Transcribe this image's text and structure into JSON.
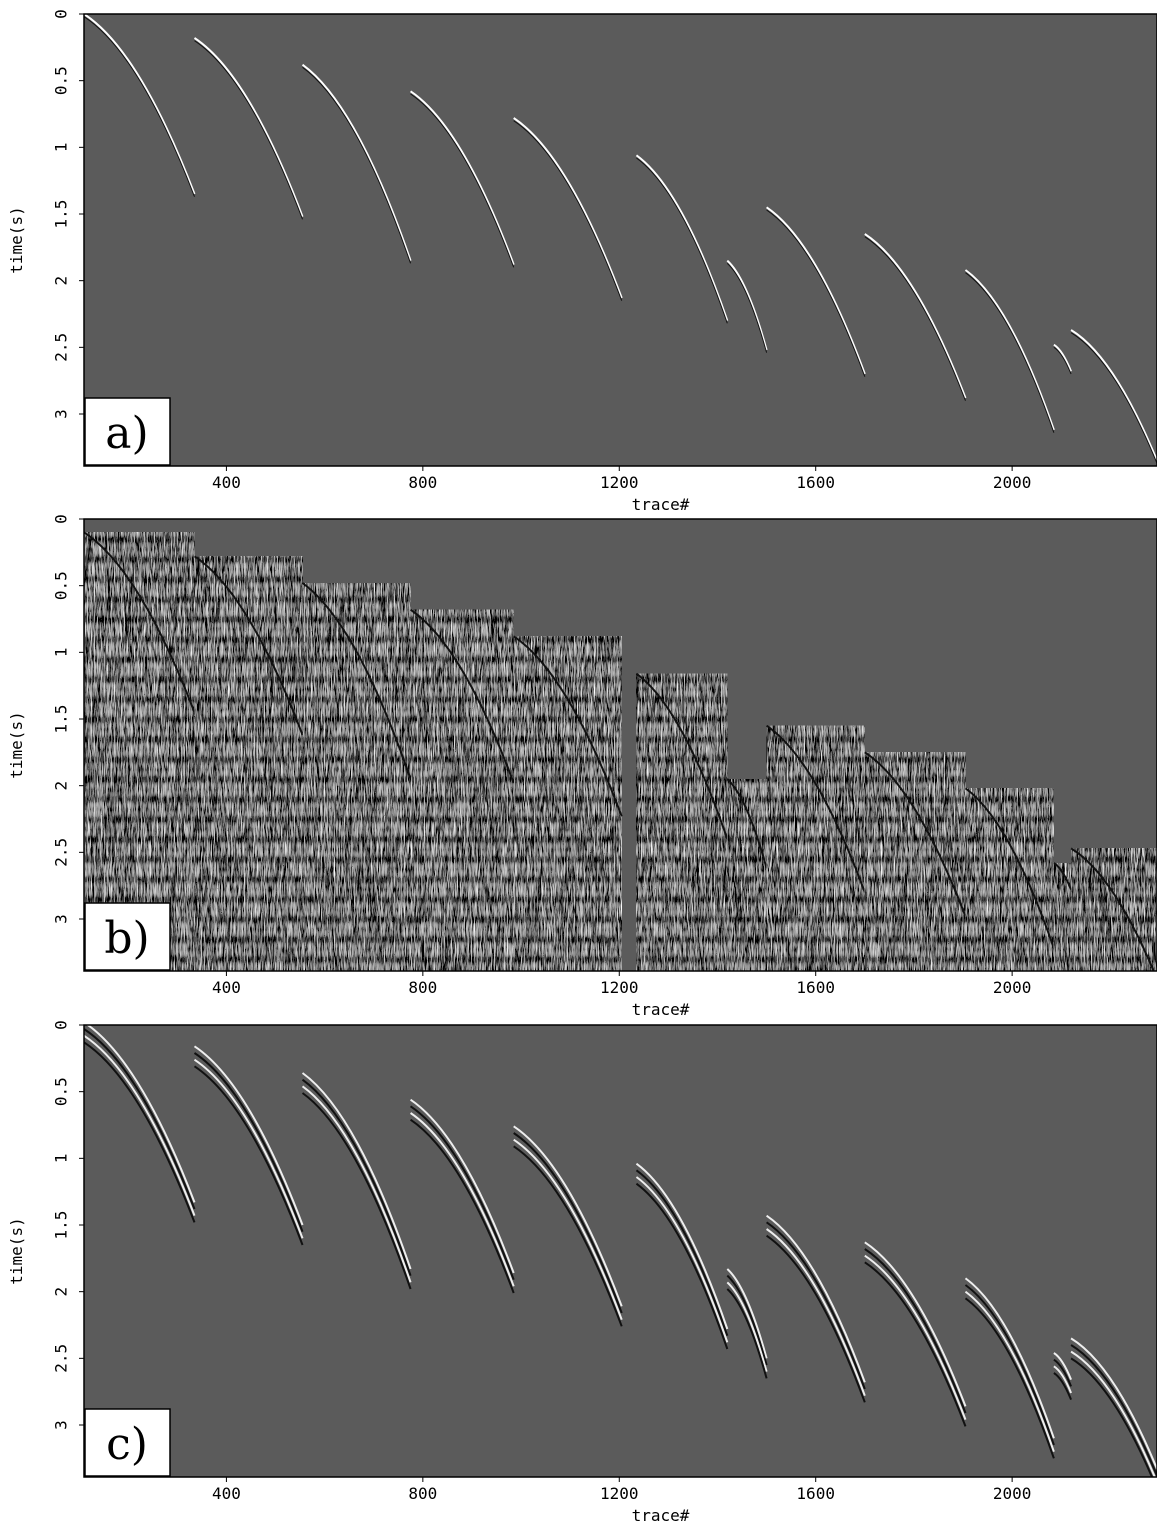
{
  "chart_data": [
    {
      "type": "seismic",
      "panel_label": "a)",
      "xlabel": "trace#",
      "ylabel": "time(s)",
      "xlim": [
        110,
        2295
      ],
      "ylim": [
        0,
        3.39
      ],
      "y_inverted": true,
      "xticks": [
        400,
        800,
        1200,
        1600,
        2000
      ],
      "yticks": [
        0,
        0.5,
        1,
        1.5,
        2,
        2.5,
        3
      ],
      "style": "events"
    },
    {
      "type": "seismic",
      "panel_label": "b)",
      "xlabel": "trace#",
      "ylabel": "time(s)",
      "xlim": [
        110,
        2295
      ],
      "ylim": [
        0,
        3.39
      ],
      "y_inverted": true,
      "xticks": [
        400,
        800,
        1200,
        1600,
        2000
      ],
      "yticks": [
        0,
        0.5,
        1,
        1.5,
        2,
        2.5,
        3
      ],
      "style": "noisy"
    },
    {
      "type": "seismic",
      "panel_label": "c)",
      "xlabel": "trace#",
      "ylabel": "time(s)",
      "xlim": [
        110,
        2295
      ],
      "ylim": [
        0,
        3.39
      ],
      "y_inverted": true,
      "xticks": [
        400,
        800,
        1200,
        1600,
        2000
      ],
      "yticks": [
        0,
        0.5,
        1,
        1.5,
        2,
        2.5,
        3
      ],
      "style": "banded"
    }
  ]
}
